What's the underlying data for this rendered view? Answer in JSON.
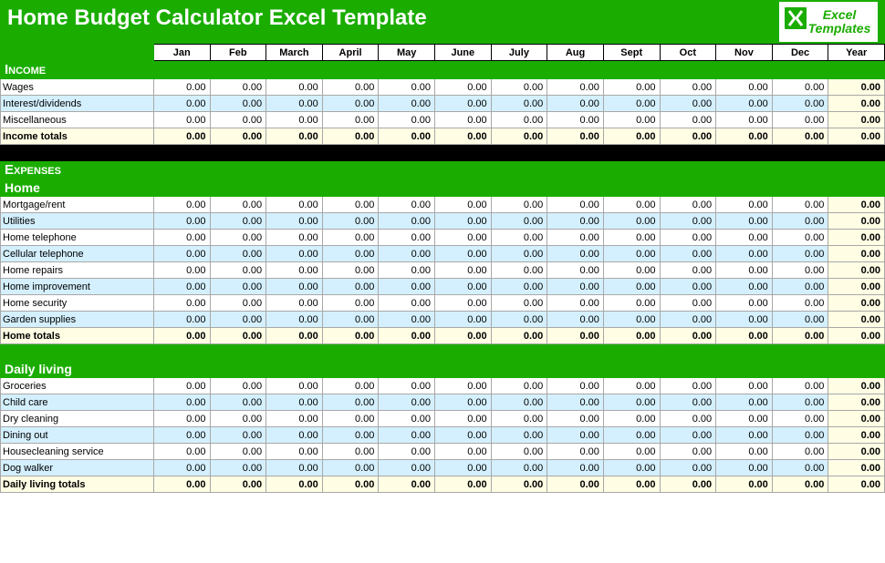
{
  "title": "Home Budget Calculator Excel Template",
  "logo": {
    "line1": "Excel",
    "line2": "Templates"
  },
  "months": [
    "Jan",
    "Feb",
    "March",
    "April",
    "May",
    "June",
    "July",
    "Aug",
    "Sept",
    "Oct",
    "Nov",
    "Dec",
    "Year"
  ],
  "zero": "0.00",
  "sections": {
    "income": {
      "header": "Income",
      "rows": [
        "Wages",
        "Interest/dividends",
        "Miscellaneous"
      ],
      "totals": "Income totals"
    },
    "expenses": {
      "header": "Expenses",
      "home": {
        "header": "Home",
        "rows": [
          "Mortgage/rent",
          "Utilities",
          "Home telephone",
          "Cellular telephone",
          "Home repairs",
          "Home improvement",
          "Home security",
          "Garden supplies"
        ],
        "totals": "Home totals"
      },
      "daily": {
        "header": "Daily living",
        "rows": [
          "Groceries",
          "Child care",
          "Dry cleaning",
          "Dining out",
          "Housecleaning service",
          "Dog walker"
        ],
        "totals": "Daily living totals"
      }
    }
  },
  "colors": {
    "green": "#1aad00",
    "altblue": "#d4f0ff",
    "cream": "#fffde4",
    "black": "#000000",
    "white": "#ffffff",
    "border": "#a8a8a8"
  }
}
